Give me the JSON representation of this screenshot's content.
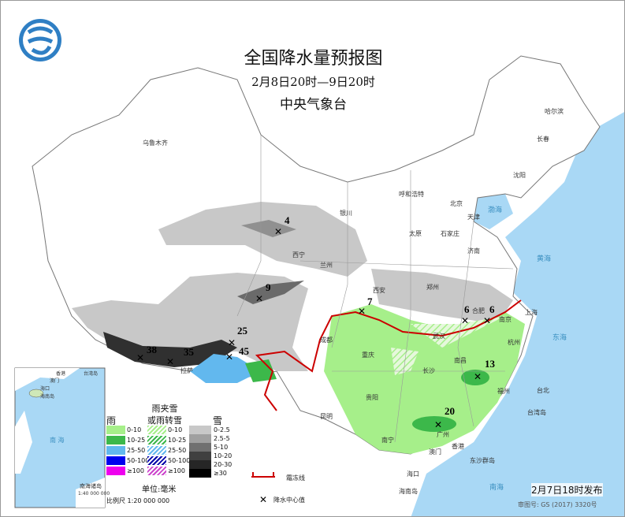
{
  "title": "全国降水量预报图",
  "period": "2月8日20时—9日20时",
  "issuer": "中央气象台",
  "issued": "2月7日18时发布",
  "review_no": "审图号: GS (2017) 3320号",
  "legend": {
    "rain_header": "雨",
    "mixed_header": "雨夹雪\n或雨转雪",
    "snow_header": "雪",
    "rain": [
      {
        "label": "0-10",
        "color": "#a6ef8a"
      },
      {
        "label": "10-25",
        "color": "#3cb84a"
      },
      {
        "label": "25-50",
        "color": "#62b8ee"
      },
      {
        "label": "50-100",
        "color": "#0000ee"
      },
      {
        "label": "≥100",
        "color": "#ee00ee"
      }
    ],
    "mixed": [
      {
        "label": "0-10",
        "color": "#a6ef8a"
      },
      {
        "label": "10-25",
        "color": "#3cb84a"
      },
      {
        "label": "25-50",
        "color": "#62b8ee"
      },
      {
        "label": "50-100",
        "color": "#0000aa"
      },
      {
        "label": "≥100",
        "color": "#cc44cc"
      }
    ],
    "snow": [
      {
        "label": "0-2.5",
        "color": "#c8c8c8"
      },
      {
        "label": "2.5-5",
        "color": "#a0a0a0"
      },
      {
        "label": "5-10",
        "color": "#707070"
      },
      {
        "label": "10-20",
        "color": "#404040"
      },
      {
        "label": "20-30",
        "color": "#262626"
      },
      {
        "label": "≥30",
        "color": "#000000"
      }
    ],
    "unit": "单位:毫米",
    "scale": "比例尺  1:20 000 000",
    "frost_line": "霜冻线",
    "center": "降水中心值"
  },
  "inset": {
    "label": "南海诸岛",
    "scale": "1:40 000 000",
    "sea": "南  海",
    "places": [
      "香港",
      "台湾岛",
      "澳门",
      "海口",
      "海南岛"
    ]
  },
  "cities": [
    "乌鲁木齐",
    "哈尔滨",
    "长春",
    "沈阳",
    "呼和浩特",
    "北京",
    "天津",
    "石家庄",
    "太原",
    "银川",
    "西宁",
    "兰州",
    "济南",
    "郑州",
    "西安",
    "合肥",
    "南京",
    "上海",
    "武汉",
    "杭州",
    "成都",
    "重庆",
    "长沙",
    "南昌",
    "福州",
    "贵阳",
    "昆明",
    "南宁",
    "广州",
    "香港",
    "澳门",
    "海口",
    "拉萨",
    "台北",
    "台湾岛",
    "东沙群岛"
  ],
  "seas": [
    "渤海",
    "黄海",
    "东海",
    "南海",
    "海南岛"
  ],
  "centers": [
    "4",
    "9",
    "7",
    "6",
    "6",
    "13",
    "20",
    "38",
    "35",
    "25",
    "45"
  ]
}
